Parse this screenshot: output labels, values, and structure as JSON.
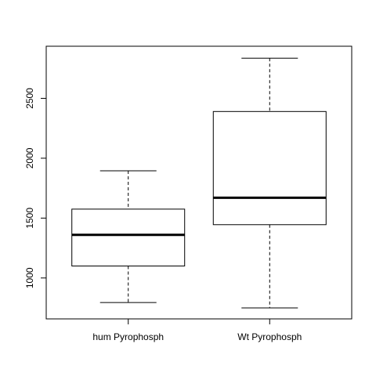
{
  "chart_data": {
    "type": "box",
    "title": "",
    "xlabel": "",
    "ylabel": "",
    "categories": [
      "hum Pyrophosph",
      "Wt Pyrophosph"
    ],
    "ylim": [
      750,
      2850
    ],
    "y_ticks": [
      1000,
      1500,
      2000,
      2500
    ],
    "y_tick_labels": [
      "1000",
      "1500",
      "2000",
      "2500"
    ],
    "boxes": [
      {
        "category": "hum Pyrophosph",
        "whisker_low": 795,
        "q1": 1100,
        "median": 1360,
        "q3": 1575,
        "whisker_high": 1895
      },
      {
        "category": "Wt Pyrophosph",
        "whisker_low": 750,
        "q1": 1445,
        "median": 1670,
        "q3": 2390,
        "whisker_high": 2835
      }
    ],
    "grid": false,
    "legend": "none",
    "colors": {
      "box_fill": "#ffffff",
      "line": "#000000"
    }
  }
}
